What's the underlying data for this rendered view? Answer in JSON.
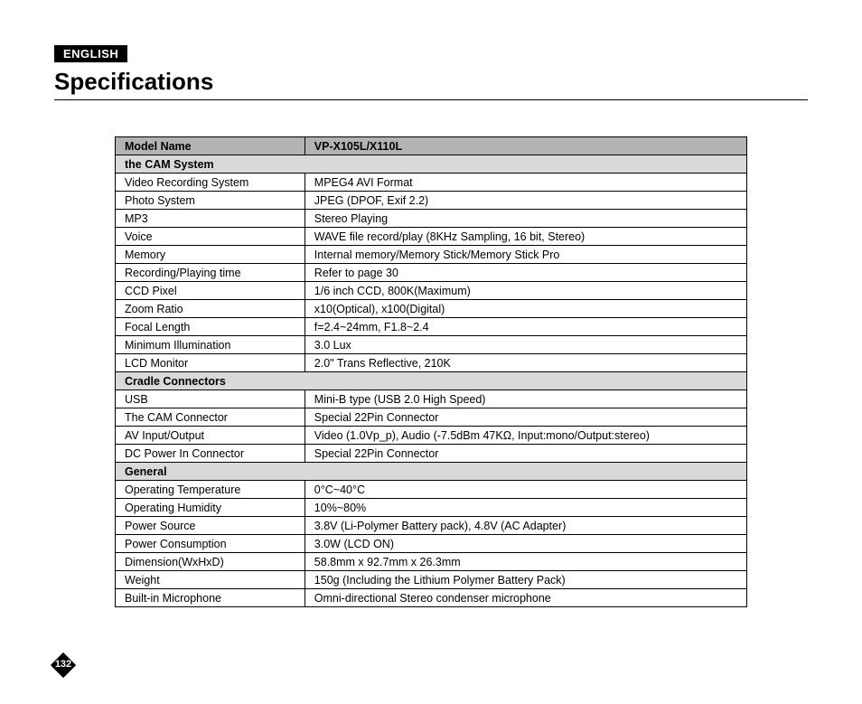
{
  "language_badge": "ENGLISH",
  "page_title": "Specifications",
  "page_number": "132",
  "colors": {
    "badge_bg": "#000000",
    "badge_fg": "#ffffff",
    "header_bg": "#b3b3b3",
    "section_bg": "#d9d9d9",
    "border": "#000000",
    "text": "#000000",
    "page_bg": "#ffffff"
  },
  "table": {
    "header": {
      "label": "Model Name",
      "value": "VP-X105L/X110L"
    },
    "sections": [
      {
        "title": "the CAM System",
        "rows": [
          {
            "label": "Video Recording System",
            "value": "MPEG4 AVI Format"
          },
          {
            "label": "Photo System",
            "value": "JPEG (DPOF, Exif 2.2)"
          },
          {
            "label": "MP3",
            "value": "Stereo Playing"
          },
          {
            "label": "Voice",
            "value": "WAVE file record/play (8KHz Sampling, 16 bit, Stereo)"
          },
          {
            "label": "Memory",
            "value": "Internal memory/Memory Stick/Memory Stick Pro"
          },
          {
            "label": "Recording/Playing time",
            "value": "Refer to page 30"
          },
          {
            "label": "CCD Pixel",
            "value": "1/6 inch CCD, 800K(Maximum)"
          },
          {
            "label": "Zoom Ratio",
            "value": "x10(Optical), x100(Digital)"
          },
          {
            "label": "Focal Length",
            "value": "f=2.4~24mm, F1.8~2.4"
          },
          {
            "label": "Minimum Illumination",
            "value": "3.0 Lux"
          },
          {
            "label": "LCD Monitor",
            "value": "2.0\" Trans Reflective, 210K"
          }
        ]
      },
      {
        "title": "Cradle Connectors",
        "rows": [
          {
            "label": "USB",
            "value": "Mini-B type (USB 2.0 High Speed)"
          },
          {
            "label": "The CAM Connector",
            "value": "Special 22Pin Connector"
          },
          {
            "label": "AV Input/Output",
            "value": "Video (1.0Vp_p), Audio (-7.5dBm 47KΩ, Input:mono/Output:stereo)"
          },
          {
            "label": "DC Power In Connector",
            "value": "Special 22Pin Connector"
          }
        ]
      },
      {
        "title": "General",
        "rows": [
          {
            "label": "Operating Temperature",
            "value": "0°C~40°C"
          },
          {
            "label": "Operating Humidity",
            "value": "10%~80%"
          },
          {
            "label": "Power Source",
            "value": "3.8V (Li-Polymer Battery pack), 4.8V (AC Adapter)"
          },
          {
            "label": "Power Consumption",
            "value": "3.0W (LCD ON)"
          },
          {
            "label": "Dimension(WxHxD)",
            "value": "58.8mm x 92.7mm x 26.3mm"
          },
          {
            "label": "Weight",
            "value": "150g (Including the Lithium Polymer Battery Pack)"
          },
          {
            "label": "Built-in Microphone",
            "value": "Omni-directional Stereo condenser microphone"
          }
        ]
      }
    ]
  }
}
